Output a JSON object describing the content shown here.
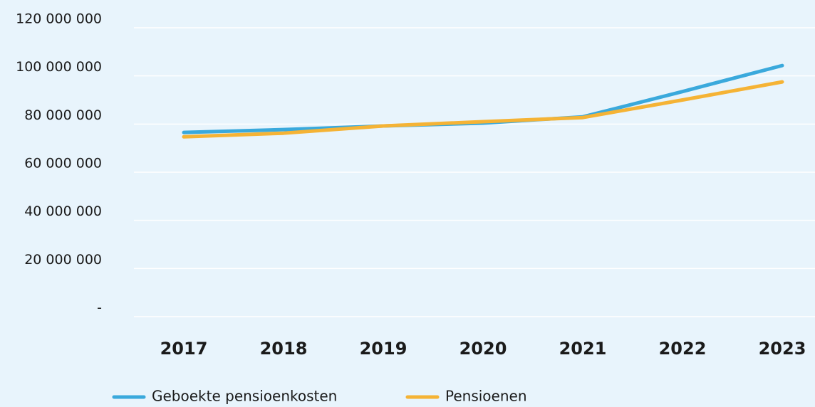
{
  "chart_data": {
    "type": "line",
    "categories": [
      "2017",
      "2018",
      "2019",
      "2020",
      "2021",
      "2022",
      "2023"
    ],
    "series": [
      {
        "name": "Geboekte pensioenkosten",
        "color": "#3aa9dc",
        "values": [
          76500000,
          77700000,
          79200000,
          80400000,
          83000000,
          93500000,
          104300000
        ]
      },
      {
        "name": "Pensioenen",
        "color": "#f5b335",
        "values": [
          74700000,
          76200000,
          79200000,
          81000000,
          82700000,
          90000000,
          97500000
        ]
      }
    ],
    "ylim": [
      0,
      120000000
    ],
    "yticks": [
      {
        "value": 0,
        "label": "-"
      },
      {
        "value": 20000000,
        "label": "20 000 000"
      },
      {
        "value": 40000000,
        "label": "40 000 000"
      },
      {
        "value": 60000000,
        "label": "60 000 000"
      },
      {
        "value": 80000000,
        "label": "80 000 000"
      },
      {
        "value": 100000000,
        "label": "100 000 000"
      },
      {
        "value": 120000000,
        "label": "120 000 000"
      }
    ],
    "grid": true,
    "legend": "bottom"
  }
}
